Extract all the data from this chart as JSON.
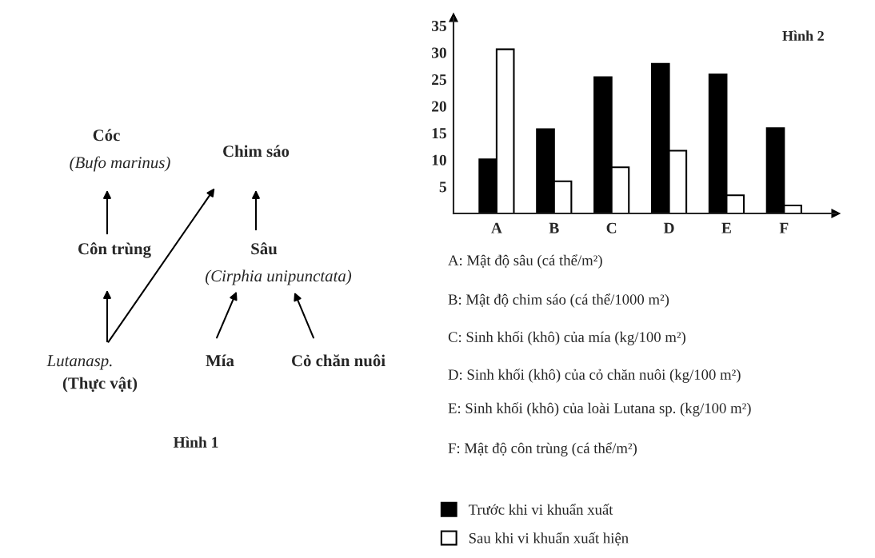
{
  "chart_data": [
    {
      "type": "other",
      "title": "Hình 1",
      "annotations": [
        "Cóc",
        "(Bufo marinus)",
        "Chim sáo",
        "Côn trùng",
        "Sâu",
        "(Cirphia unipunctata)",
        "Lutanasp.",
        "(Thực vật)",
        "Mía",
        "Cỏ chăn nuôi"
      ]
    },
    {
      "type": "bar",
      "title": "Hình 2",
      "categories": [
        "A",
        "B",
        "C",
        "D",
        "E",
        "F"
      ],
      "series": [
        {
          "name": "Trước khi vi khuẩn xuất",
          "color": "#000000",
          "values": [
            10.1,
            15.7,
            25.4,
            27.9,
            25.9,
            15.9
          ]
        },
        {
          "name": "Sau khi vi khuẩn xuất hiện",
          "color": "#ffffff",
          "values": [
            30.6,
            6.0,
            8.6,
            11.7,
            3.4,
            1.5
          ]
        }
      ],
      "ylim": [
        0,
        36.5
      ],
      "yticks": [
        5,
        10,
        15,
        20,
        25,
        30,
        35
      ],
      "grid": false,
      "legend": "bottom",
      "annotations": [
        "A: Mật độ sâu (cá thể/m²)",
        "B: Mật độ chim sáo (cá thể/1000 m²)",
        "C: Sinh khối (khô) của mía (kg/100 m²)",
        "D: Sinh khối (khô) của cỏ chăn nuôi (kg/100 m²)",
        "E: Sinh khối (khô) của loài Lutana sp. (kg/100 m²)",
        "F: Mật độ côn trùng (cá thể/m²)"
      ]
    }
  ]
}
